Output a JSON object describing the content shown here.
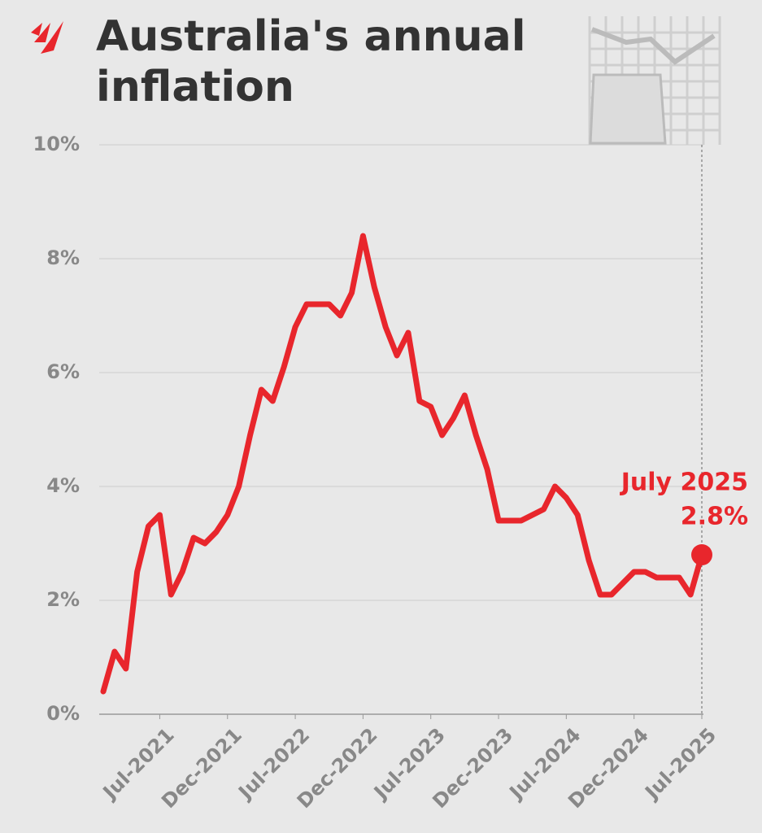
{
  "chart_data": {
    "type": "line",
    "title": "Australia's annual inflation",
    "categories": [
      null,
      null,
      null,
      null,
      null,
      "Jul-2021",
      null,
      null,
      null,
      null,
      null,
      "Dec-2021",
      null,
      null,
      null,
      null,
      null,
      "Jul-2022",
      null,
      null,
      null,
      null,
      null,
      "Dec-2022",
      null,
      null,
      null,
      null,
      null,
      "Jul-2023",
      null,
      null,
      null,
      null,
      null,
      "Dec-2023",
      null,
      null,
      null,
      null,
      null,
      "Jul-2024",
      null,
      null,
      null,
      null,
      null,
      "Dec-2024",
      null,
      null,
      null,
      null,
      null,
      "Jul-2025"
    ],
    "values": [
      0.4,
      1.1,
      0.8,
      2.5,
      3.3,
      3.5,
      2.1,
      2.5,
      3.1,
      3.0,
      3.2,
      3.5,
      4.0,
      4.9,
      5.7,
      5.5,
      6.1,
      6.8,
      7.2,
      7.2,
      7.2,
      7.0,
      7.4,
      8.4,
      7.5,
      6.8,
      6.3,
      6.7,
      5.5,
      5.4,
      4.9,
      5.2,
      5.6,
      4.9,
      4.3,
      3.4,
      3.4,
      3.4,
      3.5,
      3.6,
      4.0,
      3.8,
      3.5,
      2.7,
      2.1,
      2.1,
      2.3,
      2.5,
      2.5,
      2.4,
      2.4,
      2.4,
      2.1,
      2.8
    ],
    "value_labels": [
      null,
      null,
      null,
      null,
      null,
      null,
      null,
      null,
      null,
      null,
      null,
      null,
      null,
      null,
      null,
      null,
      null,
      null,
      null,
      null,
      null,
      null,
      null,
      null,
      null,
      null,
      null,
      null,
      null,
      null,
      null,
      null,
      null,
      null,
      null,
      null,
      null,
      null,
      null,
      null,
      null,
      null,
      null,
      null,
      null,
      null,
      null,
      null,
      null,
      null,
      null,
      null,
      null,
      "2.8%"
    ],
    "annotation": "July 2025",
    "color": "#e8262c",
    "ylim": [
      0,
      10
    ],
    "yticks": [
      {
        "value": 0,
        "label": "0%"
      },
      {
        "value": 2,
        "label": "2%"
      },
      {
        "value": 4,
        "label": "4%"
      },
      {
        "value": 6,
        "label": "6%"
      },
      {
        "value": 8,
        "label": "8%"
      },
      {
        "value": 10,
        "label": "10%"
      }
    ],
    "grid": true
  }
}
